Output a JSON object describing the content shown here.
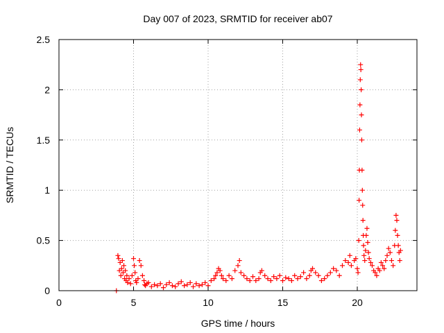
{
  "chart_data": {
    "type": "scatter",
    "title": "Day 007 of 2023, SRMTID for receiver ab07",
    "xlabel": "GPS time / hours",
    "ylabel": "SRMTID / TECUs",
    "xlim": [
      0,
      24
    ],
    "ylim": [
      0,
      2.5
    ],
    "xticks": [
      0,
      5,
      10,
      15,
      20
    ],
    "yticks": [
      0,
      0.5,
      1,
      1.5,
      2,
      2.5
    ],
    "xtick_labels": [
      "0",
      "5",
      "10",
      "15",
      "20"
    ],
    "ytick_labels": [
      "0",
      "0.5",
      "1",
      "1.5",
      "2",
      "2.5"
    ],
    "grid": true,
    "marker": "+",
    "color": "#ff0000",
    "series": [
      {
        "name": "SRMTID",
        "x": [
          3.85,
          3.95,
          4.0,
          4.05,
          4.1,
          4.15,
          4.2,
          4.25,
          4.3,
          4.35,
          4.4,
          4.45,
          4.5,
          4.55,
          4.6,
          4.7,
          4.8,
          4.9,
          5.0,
          5.05,
          5.1,
          5.15,
          5.2,
          5.3,
          5.4,
          5.5,
          5.6,
          5.7,
          5.75,
          5.8,
          5.9,
          6.0,
          6.2,
          6.4,
          6.6,
          6.8,
          7.0,
          7.2,
          7.4,
          7.6,
          7.8,
          8.0,
          8.2,
          8.4,
          8.6,
          8.8,
          9.0,
          9.2,
          9.4,
          9.6,
          9.8,
          10.0,
          10.2,
          10.4,
          10.5,
          10.6,
          10.7,
          10.8,
          10.9,
          11.0,
          11.2,
          11.4,
          11.6,
          11.8,
          12.0,
          12.1,
          12.2,
          12.4,
          12.6,
          12.8,
          13.0,
          13.2,
          13.4,
          13.5,
          13.6,
          13.8,
          14.0,
          14.2,
          14.4,
          14.6,
          14.8,
          15.0,
          15.2,
          15.4,
          15.6,
          15.8,
          16.0,
          16.2,
          16.4,
          16.6,
          16.8,
          16.9,
          17.0,
          17.2,
          17.4,
          17.6,
          17.8,
          18.0,
          18.2,
          18.4,
          18.6,
          18.8,
          19.0,
          19.2,
          19.4,
          19.5,
          19.6,
          19.8,
          19.9,
          20.0,
          20.05,
          20.1,
          20.12,
          20.14,
          20.16,
          20.18,
          20.2,
          20.22,
          20.24,
          20.26,
          20.28,
          20.3,
          20.32,
          20.34,
          20.36,
          20.38,
          20.4,
          20.42,
          20.45,
          20.5,
          20.55,
          20.6,
          20.65,
          20.7,
          20.75,
          20.8,
          20.9,
          21.0,
          21.1,
          21.2,
          21.3,
          21.4,
          21.5,
          21.6,
          21.7,
          21.8,
          21.9,
          22.0,
          22.1,
          22.2,
          22.3,
          22.4,
          22.5,
          22.55,
          22.6,
          22.65,
          22.7,
          22.75,
          22.8,
          22.85,
          22.9
        ],
        "y": [
          0.0,
          0.35,
          0.32,
          0.2,
          0.28,
          0.15,
          0.22,
          0.3,
          0.18,
          0.25,
          0.12,
          0.2,
          0.1,
          0.15,
          0.08,
          0.12,
          0.07,
          0.15,
          0.32,
          0.25,
          0.18,
          0.1,
          0.08,
          0.12,
          0.3,
          0.25,
          0.15,
          0.1,
          0.06,
          0.05,
          0.07,
          0.08,
          0.04,
          0.06,
          0.05,
          0.07,
          0.03,
          0.06,
          0.08,
          0.05,
          0.04,
          0.07,
          0.09,
          0.05,
          0.06,
          0.08,
          0.04,
          0.07,
          0.05,
          0.06,
          0.08,
          0.05,
          0.1,
          0.12,
          0.15,
          0.18,
          0.22,
          0.2,
          0.15,
          0.12,
          0.1,
          0.15,
          0.12,
          0.2,
          0.25,
          0.3,
          0.18,
          0.15,
          0.12,
          0.1,
          0.14,
          0.1,
          0.12,
          0.18,
          0.2,
          0.15,
          0.12,
          0.1,
          0.14,
          0.12,
          0.15,
          0.1,
          0.13,
          0.12,
          0.1,
          0.15,
          0.12,
          0.14,
          0.18,
          0.12,
          0.15,
          0.2,
          0.22,
          0.18,
          0.15,
          0.1,
          0.12,
          0.15,
          0.18,
          0.22,
          0.2,
          0.15,
          0.25,
          0.3,
          0.28,
          0.35,
          0.25,
          0.3,
          0.32,
          0.22,
          0.18,
          0.5,
          0.9,
          1.2,
          1.6,
          1.85,
          2.1,
          2.25,
          2.2,
          2.0,
          1.75,
          1.5,
          1.2,
          1.0,
          0.85,
          0.7,
          0.55,
          0.45,
          0.35,
          0.3,
          0.4,
          0.55,
          0.62,
          0.48,
          0.38,
          0.32,
          0.28,
          0.25,
          0.2,
          0.18,
          0.15,
          0.22,
          0.2,
          0.28,
          0.25,
          0.22,
          0.3,
          0.35,
          0.42,
          0.38,
          0.3,
          0.25,
          0.45,
          0.6,
          0.75,
          0.7,
          0.55,
          0.45,
          0.38,
          0.3,
          0.4
        ]
      }
    ]
  }
}
